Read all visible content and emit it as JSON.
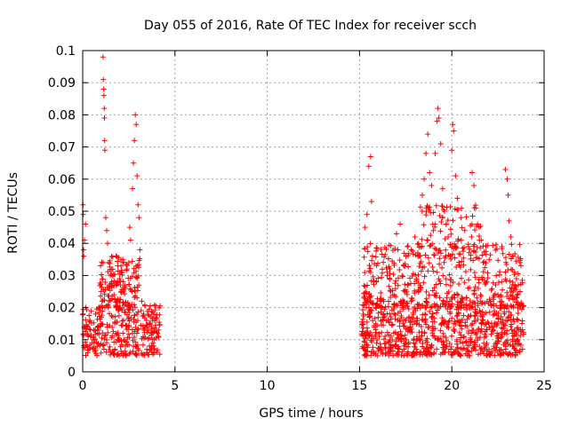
{
  "chart_data": {
    "type": "scatter",
    "title": "Day 055 of 2016, Rate Of TEC Index for receiver scch",
    "xlabel": "GPS time / hours",
    "ylabel": "ROTI / TECUs",
    "xlim": [
      0,
      25
    ],
    "ylim": [
      0,
      0.1
    ],
    "x_ticks": [
      "0",
      "5",
      "10",
      "15",
      "20",
      "25"
    ],
    "y_ticks": [
      "0",
      "0.01",
      "0.02",
      "0.03",
      "0.04",
      "0.05",
      "0.06",
      "0.07",
      "0.08",
      "0.09",
      "0.1"
    ],
    "grid": true,
    "marker": "plus",
    "colors": {
      "points": "#ff0000",
      "grid": "#a0a0a0",
      "axes": "#000000"
    },
    "series": [
      {
        "name": "ROTI",
        "points": [
          [
            0.02,
            0.052
          ],
          [
            0.03,
            0.049
          ],
          [
            0.05,
            0.038
          ],
          [
            0.06,
            0.036
          ],
          [
            0.1,
            0.041
          ],
          [
            0.15,
            0.046
          ],
          [
            0.2,
            0.014
          ],
          [
            0.3,
            0.011
          ],
          [
            0.4,
            0.016
          ],
          [
            0.5,
            0.009
          ],
          [
            0.6,
            0.013
          ],
          [
            0.7,
            0.018
          ],
          [
            0.8,
            0.012
          ],
          [
            0.9,
            0.02
          ],
          [
            1.0,
            0.015
          ],
          [
            1.1,
            0.098
          ],
          [
            1.12,
            0.091
          ],
          [
            1.14,
            0.088
          ],
          [
            1.15,
            0.086
          ],
          [
            1.17,
            0.082
          ],
          [
            1.18,
            0.079
          ],
          [
            1.19,
            0.072
          ],
          [
            1.2,
            0.069
          ],
          [
            1.25,
            0.048
          ],
          [
            1.3,
            0.044
          ],
          [
            1.35,
            0.04
          ],
          [
            1.4,
            0.034
          ],
          [
            1.5,
            0.03
          ],
          [
            1.6,
            0.027
          ],
          [
            1.7,
            0.024
          ],
          [
            1.8,
            0.036
          ],
          [
            1.9,
            0.033
          ],
          [
            2.0,
            0.029
          ],
          [
            2.1,
            0.031
          ],
          [
            2.2,
            0.028
          ],
          [
            2.3,
            0.026
          ],
          [
            2.4,
            0.032
          ],
          [
            2.5,
            0.034
          ],
          [
            2.55,
            0.045
          ],
          [
            2.6,
            0.041
          ],
          [
            2.7,
            0.057
          ],
          [
            2.75,
            0.065
          ],
          [
            2.8,
            0.072
          ],
          [
            2.85,
            0.08
          ],
          [
            2.9,
            0.077
          ],
          [
            2.95,
            0.061
          ],
          [
            3.0,
            0.052
          ],
          [
            3.05,
            0.048
          ],
          [
            3.1,
            0.038
          ],
          [
            3.2,
            0.022
          ],
          [
            3.3,
            0.018
          ],
          [
            3.5,
            0.014
          ],
          [
            3.7,
            0.012
          ],
          [
            3.9,
            0.016
          ],
          [
            4.0,
            0.013
          ],
          [
            4.1,
            0.011
          ],
          [
            15.2,
            0.018
          ],
          [
            15.3,
            0.045
          ],
          [
            15.4,
            0.049
          ],
          [
            15.5,
            0.064
          ],
          [
            15.6,
            0.067
          ],
          [
            15.65,
            0.053
          ],
          [
            15.7,
            0.036
          ],
          [
            15.9,
            0.028
          ],
          [
            16.1,
            0.022
          ],
          [
            16.3,
            0.017
          ],
          [
            16.5,
            0.03
          ],
          [
            16.8,
            0.024
          ],
          [
            17.0,
            0.043
          ],
          [
            17.2,
            0.046
          ],
          [
            17.4,
            0.033
          ],
          [
            17.6,
            0.027
          ],
          [
            17.8,
            0.038
          ],
          [
            18.0,
            0.042
          ],
          [
            18.2,
            0.036
          ],
          [
            18.4,
            0.055
          ],
          [
            18.5,
            0.06
          ],
          [
            18.6,
            0.068
          ],
          [
            18.7,
            0.074
          ],
          [
            18.8,
            0.062
          ],
          [
            18.9,
            0.058
          ],
          [
            19.0,
            0.044
          ],
          [
            19.1,
            0.068
          ],
          [
            19.2,
            0.078
          ],
          [
            19.25,
            0.082
          ],
          [
            19.3,
            0.079
          ],
          [
            19.4,
            0.071
          ],
          [
            19.5,
            0.057
          ],
          [
            19.6,
            0.05
          ],
          [
            19.7,
            0.046
          ],
          [
            19.8,
            0.042
          ],
          [
            19.9,
            0.036
          ],
          [
            20.0,
            0.069
          ],
          [
            20.05,
            0.077
          ],
          [
            20.1,
            0.075
          ],
          [
            20.2,
            0.061
          ],
          [
            20.3,
            0.054
          ],
          [
            20.5,
            0.048
          ],
          [
            20.7,
            0.044
          ],
          [
            20.9,
            0.039
          ],
          [
            21.1,
            0.062
          ],
          [
            21.2,
            0.058
          ],
          [
            21.3,
            0.051
          ],
          [
            21.4,
            0.046
          ],
          [
            21.5,
            0.041
          ],
          [
            21.7,
            0.034
          ],
          [
            21.9,
            0.028
          ],
          [
            22.1,
            0.022
          ],
          [
            22.3,
            0.019
          ],
          [
            22.5,
            0.024
          ],
          [
            22.7,
            0.028
          ],
          [
            22.9,
            0.063
          ],
          [
            23.0,
            0.06
          ],
          [
            23.05,
            0.055
          ],
          [
            23.1,
            0.047
          ],
          [
            23.2,
            0.042
          ],
          [
            23.3,
            0.036
          ],
          [
            23.4,
            0.031
          ],
          [
            23.5,
            0.029
          ],
          [
            23.6,
            0.027
          ],
          [
            23.7,
            0.025
          ]
        ],
        "dense_bands": [
          {
            "x": [
              0.0,
              4.2
            ],
            "y": [
              0.005,
              0.021
            ],
            "count": 320
          },
          {
            "x": [
              0.9,
              3.1
            ],
            "y": [
              0.02,
              0.036
            ],
            "count": 140
          },
          {
            "x": [
              15.1,
              23.9
            ],
            "y": [
              0.005,
              0.022
            ],
            "count": 760
          },
          {
            "x": [
              15.2,
              23.9
            ],
            "y": [
              0.02,
              0.04
            ],
            "count": 420
          },
          {
            "x": [
              18.2,
              21.8
            ],
            "y": [
              0.035,
              0.052
            ],
            "count": 90
          }
        ]
      }
    ]
  }
}
